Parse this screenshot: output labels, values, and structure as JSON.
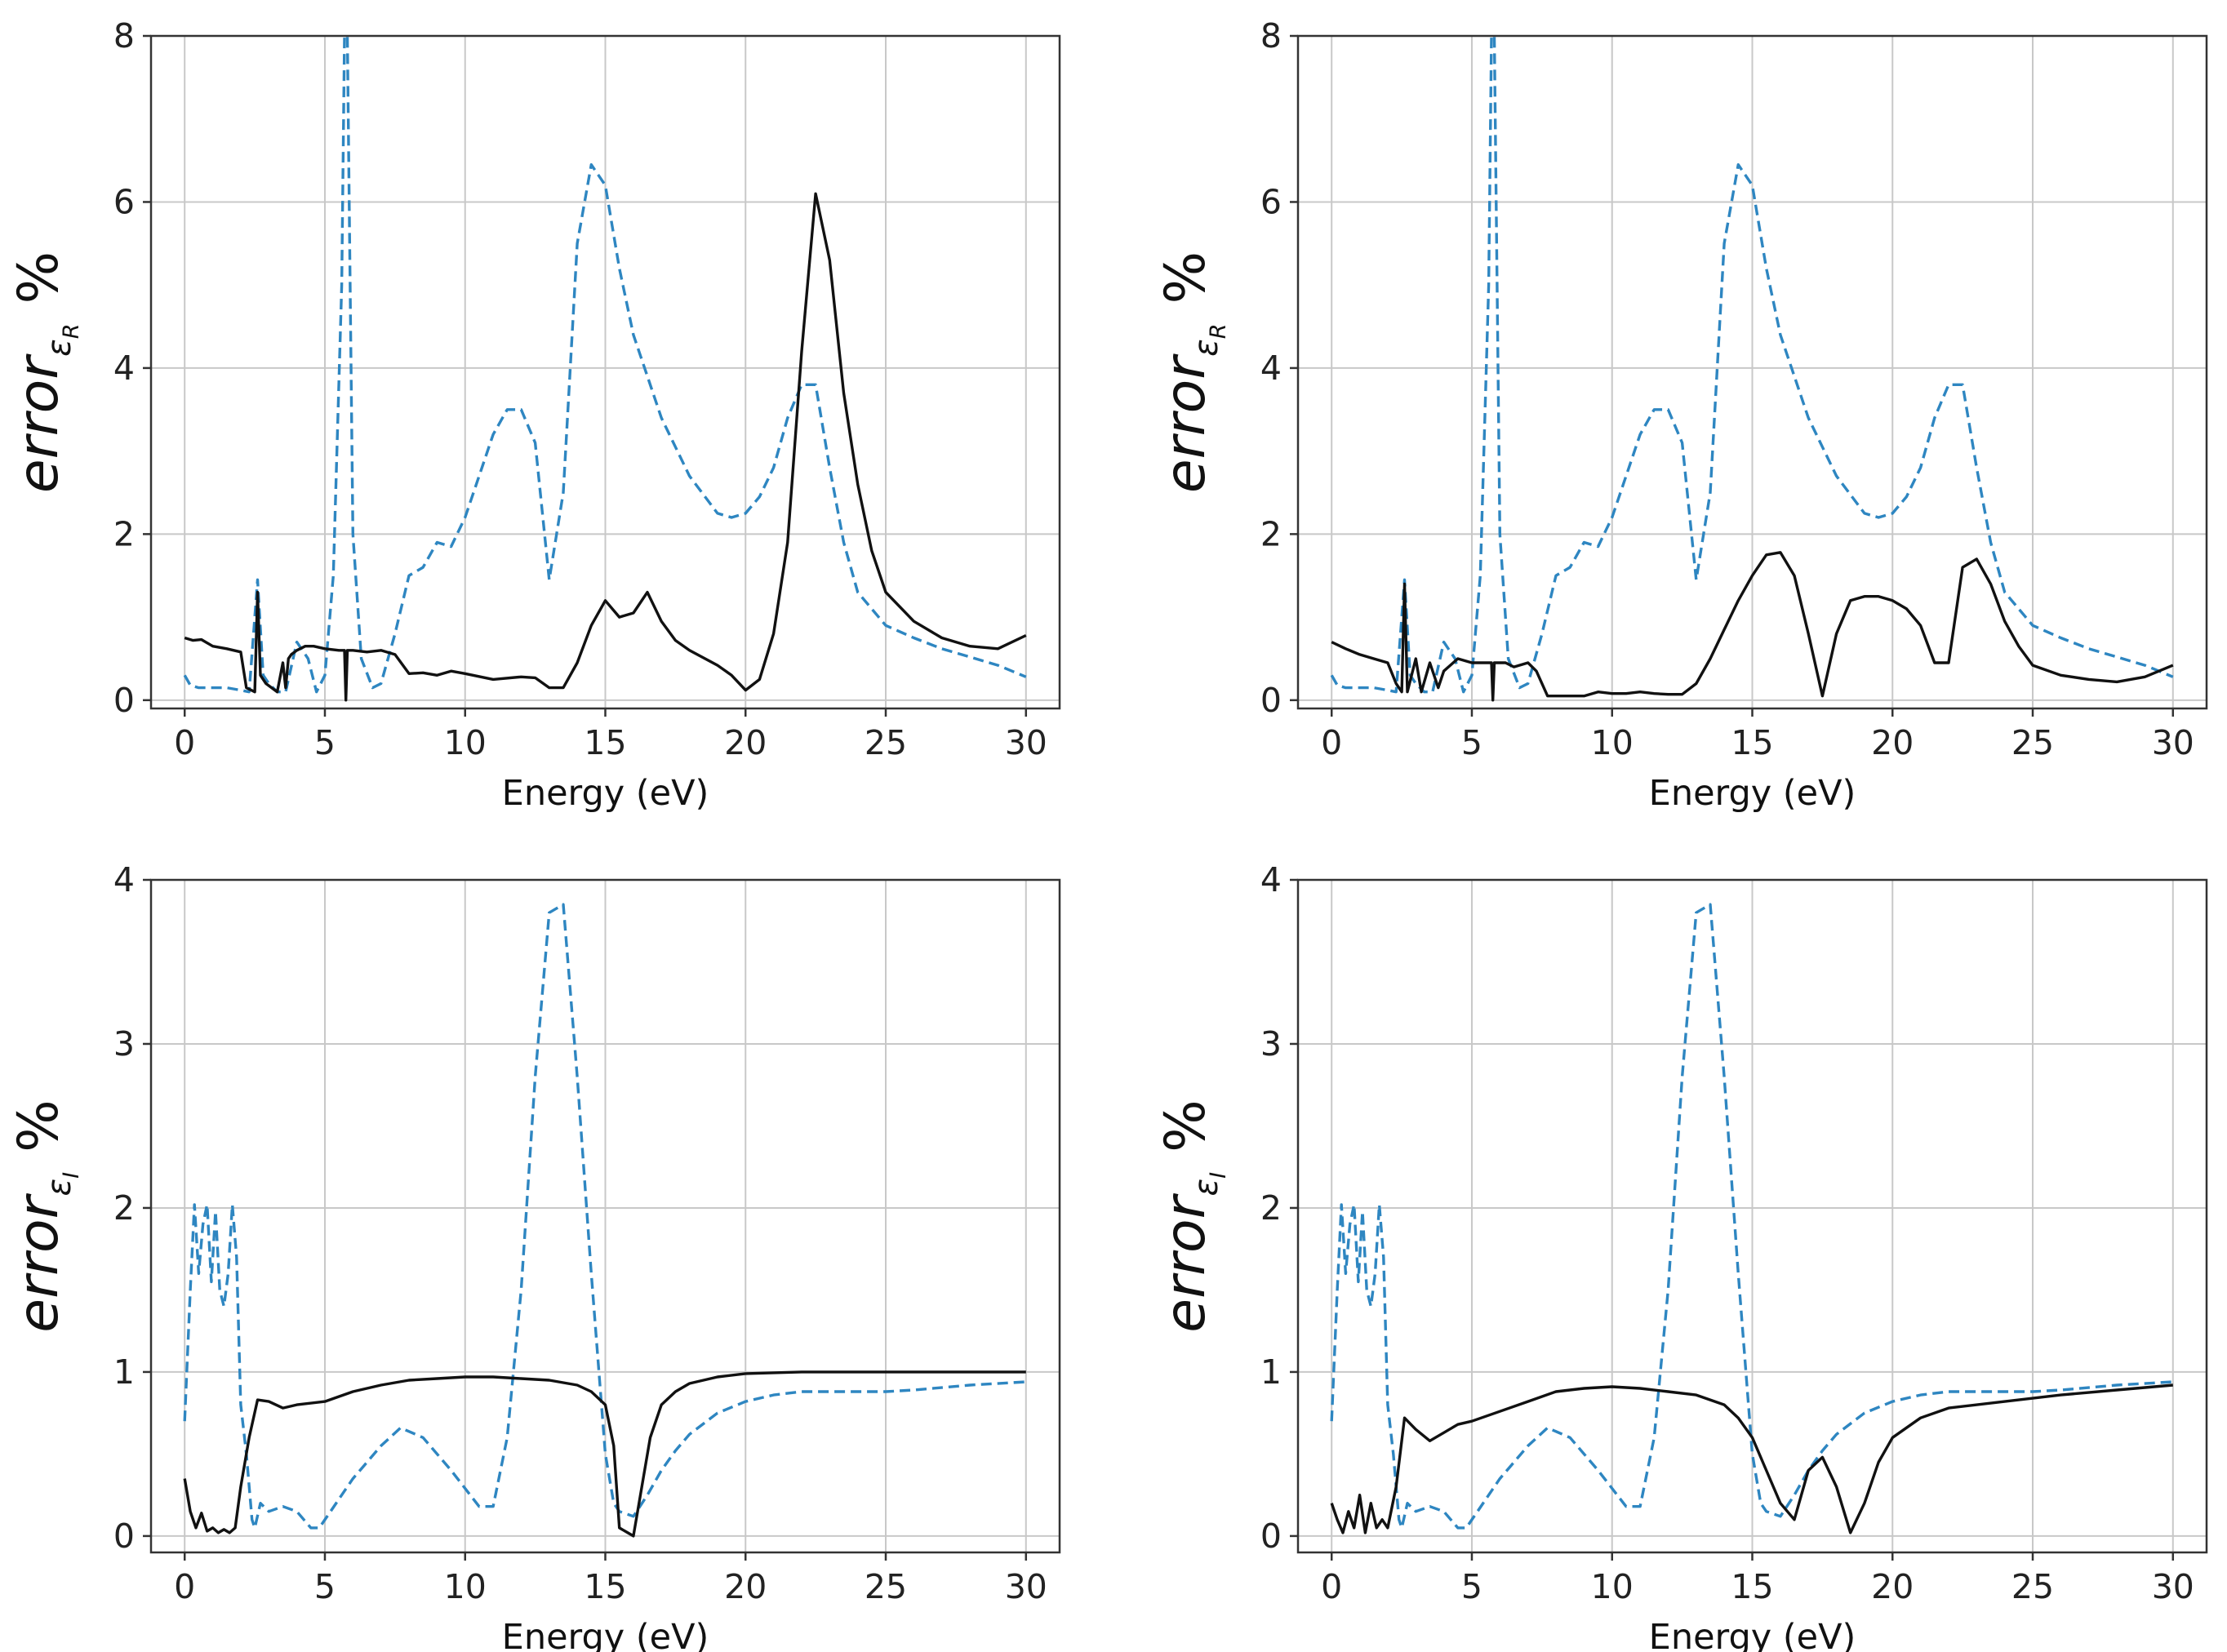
{
  "colors": {
    "truth_line": "#111111",
    "compare_line": "#2e86c1",
    "grid": "#c8c8c8",
    "axes": "#333333"
  },
  "chart_data": [
    {
      "type": "line",
      "panel": "top-left",
      "xlabel": "Energy (eV)",
      "ylabel": {
        "base": "error",
        "sub": "ε",
        "subsub": "R",
        "unit": "%"
      },
      "xlim": [
        -1.2,
        31.2
      ],
      "ylim": [
        -0.1,
        8
      ],
      "xticks": [
        0,
        5,
        10,
        15,
        20,
        25,
        30
      ],
      "yticks": [
        0,
        2,
        4,
        6,
        8
      ],
      "series": [
        {
          "name": "solid",
          "style": "solid",
          "x": [
            0,
            0.3,
            0.6,
            1.0,
            1.5,
            2.0,
            2.2,
            2.5,
            2.6,
            2.7,
            2.9,
            3.1,
            3.3,
            3.5,
            3.6,
            3.7,
            3.8,
            4.0,
            4.3,
            4.6,
            5.0,
            5.5,
            5.7,
            5.75,
            5.8,
            6.0,
            6.5,
            7.0,
            7.5,
            8.0,
            8.5,
            9.0,
            9.5,
            10.0,
            11.0,
            12.0,
            12.5,
            13.0,
            13.5,
            14.0,
            14.5,
            15.0,
            15.5,
            16.0,
            16.5,
            17.0,
            17.5,
            18.0,
            19.0,
            19.5,
            20.0,
            20.5,
            21.0,
            21.5,
            22.0,
            22.5,
            23.0,
            23.5,
            24.0,
            24.5,
            25.0,
            26.0,
            27.0,
            28.0,
            29.0,
            30.0
          ],
          "y": [
            0.75,
            0.72,
            0.73,
            0.65,
            0.62,
            0.58,
            0.15,
            0.1,
            1.3,
            0.3,
            0.2,
            0.15,
            0.1,
            0.45,
            0.15,
            0.5,
            0.55,
            0.6,
            0.65,
            0.65,
            0.62,
            0.6,
            0.6,
            0.0,
            0.6,
            0.6,
            0.58,
            0.6,
            0.55,
            0.32,
            0.33,
            0.3,
            0.35,
            0.32,
            0.25,
            0.28,
            0.27,
            0.15,
            0.15,
            0.45,
            0.9,
            1.2,
            1.0,
            1.05,
            1.3,
            0.95,
            0.72,
            0.6,
            0.42,
            0.3,
            0.12,
            0.25,
            0.8,
            1.9,
            4.2,
            6.1,
            5.3,
            3.7,
            2.6,
            1.8,
            1.3,
            0.95,
            0.75,
            0.65,
            0.62,
            0.78
          ]
        },
        {
          "name": "dashed",
          "style": "dashed",
          "x": [
            0,
            0.2,
            0.5,
            1.0,
            1.5,
            2.0,
            2.3,
            2.5,
            2.6,
            2.8,
            3.0,
            3.3,
            3.6,
            4.0,
            4.4,
            4.7,
            5.0,
            5.3,
            5.6,
            5.7,
            5.8,
            6.0,
            6.3,
            6.7,
            7.0,
            7.5,
            8.0,
            8.5,
            9.0,
            9.5,
            10.0,
            10.5,
            11.0,
            11.5,
            12.0,
            12.5,
            13.0,
            13.5,
            14.0,
            14.5,
            15.0,
            15.5,
            16.0,
            17.0,
            18.0,
            19.0,
            19.5,
            20.0,
            20.5,
            21.0,
            21.5,
            22.0,
            22.5,
            23.0,
            23.5,
            24.0,
            25.0,
            26.0,
            27.0,
            28.0,
            29.0,
            30.0
          ],
          "y": [
            0.3,
            0.18,
            0.15,
            0.15,
            0.15,
            0.12,
            0.1,
            1.0,
            1.45,
            0.3,
            0.2,
            0.1,
            0.1,
            0.7,
            0.5,
            0.1,
            0.3,
            1.5,
            5.0,
            8.0,
            8.0,
            2.0,
            0.5,
            0.15,
            0.2,
            0.8,
            1.5,
            1.6,
            1.9,
            1.85,
            2.2,
            2.7,
            3.2,
            3.5,
            3.5,
            3.1,
            1.45,
            2.5,
            5.5,
            6.45,
            6.2,
            5.2,
            4.4,
            3.4,
            2.7,
            2.25,
            2.2,
            2.25,
            2.45,
            2.8,
            3.4,
            3.8,
            3.8,
            2.8,
            1.9,
            1.3,
            0.9,
            0.75,
            0.62,
            0.52,
            0.42,
            0.28
          ]
        }
      ]
    },
    {
      "type": "line",
      "panel": "top-right",
      "xlabel": "Energy (eV)",
      "ylabel": {
        "base": "error",
        "sub": "ε",
        "subsub": "R",
        "unit": "%"
      },
      "xlim": [
        -1.2,
        31.2
      ],
      "ylim": [
        -0.1,
        8
      ],
      "xticks": [
        0,
        5,
        10,
        15,
        20,
        25,
        30
      ],
      "yticks": [
        0,
        2,
        4,
        6,
        8
      ],
      "series": [
        {
          "name": "solid",
          "style": "solid",
          "x": [
            0,
            0.5,
            1.0,
            1.5,
            2.0,
            2.3,
            2.5,
            2.6,
            2.7,
            3.0,
            3.2,
            3.5,
            3.8,
            4.0,
            4.5,
            5.0,
            5.5,
            5.7,
            5.75,
            5.8,
            6.2,
            6.5,
            7.0,
            7.3,
            7.7,
            8.0,
            8.5,
            9.0,
            9.5,
            10.0,
            10.5,
            11.0,
            11.5,
            12.0,
            12.5,
            13.0,
            13.5,
            14.0,
            14.5,
            15.0,
            15.5,
            16.0,
            16.5,
            17.0,
            17.5,
            18.0,
            18.5,
            19.0,
            19.5,
            20.0,
            20.5,
            21.0,
            21.5,
            22.0,
            22.5,
            23.0,
            23.5,
            24.0,
            24.5,
            25.0,
            26.0,
            27.0,
            28.0,
            29.0,
            30.0
          ],
          "y": [
            0.7,
            0.62,
            0.55,
            0.5,
            0.45,
            0.2,
            0.1,
            1.4,
            0.1,
            0.5,
            0.1,
            0.45,
            0.15,
            0.35,
            0.5,
            0.45,
            0.45,
            0.45,
            0.0,
            0.45,
            0.45,
            0.4,
            0.45,
            0.35,
            0.05,
            0.05,
            0.05,
            0.05,
            0.1,
            0.08,
            0.08,
            0.1,
            0.08,
            0.07,
            0.07,
            0.2,
            0.5,
            0.85,
            1.2,
            1.5,
            1.75,
            1.78,
            1.5,
            0.8,
            0.05,
            0.8,
            1.2,
            1.25,
            1.25,
            1.2,
            1.1,
            0.9,
            0.45,
            0.45,
            1.6,
            1.7,
            1.4,
            0.95,
            0.65,
            0.42,
            0.3,
            0.25,
            0.22,
            0.28,
            0.42
          ]
        },
        {
          "name": "dashed",
          "style": "dashed",
          "x": [
            0,
            0.2,
            0.5,
            1.0,
            1.5,
            2.0,
            2.3,
            2.5,
            2.6,
            2.8,
            3.0,
            3.3,
            3.6,
            4.0,
            4.4,
            4.7,
            5.0,
            5.3,
            5.6,
            5.7,
            5.8,
            6.0,
            6.3,
            6.7,
            7.0,
            7.5,
            8.0,
            8.5,
            9.0,
            9.5,
            10.0,
            10.5,
            11.0,
            11.5,
            12.0,
            12.5,
            13.0,
            13.5,
            14.0,
            14.5,
            15.0,
            15.5,
            16.0,
            17.0,
            18.0,
            19.0,
            19.5,
            20.0,
            20.5,
            21.0,
            21.5,
            22.0,
            22.5,
            23.0,
            23.5,
            24.0,
            25.0,
            26.0,
            27.0,
            28.0,
            29.0,
            30.0
          ],
          "y": [
            0.3,
            0.18,
            0.15,
            0.15,
            0.15,
            0.12,
            0.1,
            1.0,
            1.45,
            0.3,
            0.2,
            0.1,
            0.1,
            0.7,
            0.5,
            0.1,
            0.3,
            1.5,
            5.0,
            8.0,
            8.0,
            2.0,
            0.5,
            0.15,
            0.2,
            0.8,
            1.5,
            1.6,
            1.9,
            1.85,
            2.2,
            2.7,
            3.2,
            3.5,
            3.5,
            3.1,
            1.45,
            2.5,
            5.5,
            6.45,
            6.2,
            5.2,
            4.4,
            3.4,
            2.7,
            2.25,
            2.2,
            2.25,
            2.45,
            2.8,
            3.4,
            3.8,
            3.8,
            2.8,
            1.9,
            1.3,
            0.9,
            0.75,
            0.62,
            0.52,
            0.42,
            0.28
          ]
        }
      ]
    },
    {
      "type": "line",
      "panel": "bottom-left",
      "xlabel": "Energy (eV)",
      "ylabel": {
        "base": "error",
        "sub": "ε",
        "subsub": "I",
        "unit": "%"
      },
      "xlim": [
        -1.2,
        31.2
      ],
      "ylim": [
        -0.1,
        4
      ],
      "xticks": [
        0,
        5,
        10,
        15,
        20,
        25,
        30
      ],
      "yticks": [
        0,
        1,
        2,
        3,
        4
      ],
      "series": [
        {
          "name": "solid",
          "style": "solid",
          "x": [
            0,
            0.2,
            0.4,
            0.6,
            0.8,
            1.0,
            1.2,
            1.4,
            1.6,
            1.8,
            2.0,
            2.3,
            2.6,
            3.0,
            3.5,
            4.0,
            5.0,
            6.0,
            7.0,
            8.0,
            9.0,
            10.0,
            11.0,
            12.0,
            13.0,
            14.0,
            14.5,
            15.0,
            15.3,
            15.5,
            15.8,
            16.0,
            16.3,
            16.6,
            17.0,
            17.5,
            18.0,
            19.0,
            20.0,
            22.0,
            25.0,
            28.0,
            30.0
          ],
          "y": [
            0.35,
            0.15,
            0.05,
            0.14,
            0.03,
            0.05,
            0.02,
            0.04,
            0.02,
            0.05,
            0.3,
            0.6,
            0.83,
            0.82,
            0.78,
            0.8,
            0.82,
            0.88,
            0.92,
            0.95,
            0.96,
            0.97,
            0.97,
            0.96,
            0.95,
            0.92,
            0.88,
            0.8,
            0.55,
            0.05,
            0.02,
            0.0,
            0.3,
            0.6,
            0.8,
            0.88,
            0.93,
            0.97,
            0.99,
            1.0,
            1.0,
            1.0,
            1.0
          ]
        },
        {
          "name": "dashed",
          "style": "dashed",
          "x": [
            0,
            0.2,
            0.35,
            0.5,
            0.65,
            0.8,
            0.95,
            1.1,
            1.25,
            1.4,
            1.55,
            1.7,
            1.85,
            2.0,
            2.2,
            2.4,
            2.5,
            2.7,
            3.0,
            3.5,
            4.0,
            4.5,
            4.8,
            5.2,
            6.0,
            7.0,
            7.7,
            8.5,
            9.5,
            10.5,
            11.0,
            11.5,
            12.0,
            12.5,
            13.0,
            13.5,
            14.0,
            14.5,
            15.0,
            15.3,
            15.5,
            16.0,
            16.5,
            17.0,
            17.5,
            18.0,
            19.0,
            20.0,
            21.0,
            22.0,
            23.0,
            24.0,
            25.0,
            26.0,
            28.0,
            30.0
          ],
          "y": [
            0.7,
            1.5,
            2.02,
            1.6,
            1.9,
            2.02,
            1.55,
            1.98,
            1.5,
            1.4,
            1.6,
            2.02,
            1.7,
            0.8,
            0.5,
            0.1,
            0.05,
            0.2,
            0.15,
            0.18,
            0.15,
            0.05,
            0.05,
            0.15,
            0.35,
            0.55,
            0.66,
            0.6,
            0.4,
            0.18,
            0.18,
            0.6,
            1.5,
            2.8,
            3.8,
            3.85,
            2.8,
            1.6,
            0.5,
            0.2,
            0.15,
            0.12,
            0.25,
            0.4,
            0.52,
            0.62,
            0.75,
            0.82,
            0.86,
            0.88,
            0.88,
            0.88,
            0.88,
            0.89,
            0.92,
            0.94
          ]
        }
      ]
    },
    {
      "type": "line",
      "panel": "bottom-right",
      "xlabel": "Energy (eV)",
      "ylabel": {
        "base": "error",
        "sub": "ε",
        "subsub": "I",
        "unit": "%"
      },
      "xlim": [
        -1.2,
        31.2
      ],
      "ylim": [
        -0.1,
        4
      ],
      "xticks": [
        0,
        5,
        10,
        15,
        20,
        25,
        30
      ],
      "yticks": [
        0,
        1,
        2,
        3,
        4
      ],
      "series": [
        {
          "name": "solid",
          "style": "solid",
          "x": [
            0,
            0.2,
            0.4,
            0.6,
            0.8,
            1.0,
            1.2,
            1.4,
            1.6,
            1.8,
            2.0,
            2.3,
            2.6,
            3.0,
            3.5,
            4.0,
            4.5,
            5.0,
            6.0,
            7.0,
            8.0,
            9.0,
            10.0,
            11.0,
            12.0,
            13.0,
            14.0,
            14.5,
            15.0,
            15.5,
            16.0,
            16.5,
            17.0,
            17.5,
            18.0,
            18.5,
            19.0,
            19.5,
            20.0,
            21.0,
            22.0,
            24.0,
            26.0,
            28.0,
            30.0
          ],
          "y": [
            0.2,
            0.1,
            0.02,
            0.15,
            0.05,
            0.25,
            0.02,
            0.2,
            0.05,
            0.1,
            0.05,
            0.3,
            0.72,
            0.65,
            0.58,
            0.63,
            0.68,
            0.7,
            0.76,
            0.82,
            0.88,
            0.9,
            0.91,
            0.9,
            0.88,
            0.86,
            0.8,
            0.72,
            0.6,
            0.4,
            0.2,
            0.1,
            0.4,
            0.48,
            0.3,
            0.02,
            0.2,
            0.45,
            0.6,
            0.72,
            0.78,
            0.82,
            0.86,
            0.89,
            0.92
          ]
        },
        {
          "name": "dashed",
          "style": "dashed",
          "x": [
            0,
            0.2,
            0.35,
            0.5,
            0.65,
            0.8,
            0.95,
            1.1,
            1.25,
            1.4,
            1.55,
            1.7,
            1.85,
            2.0,
            2.2,
            2.4,
            2.5,
            2.7,
            3.0,
            3.5,
            4.0,
            4.5,
            4.8,
            5.2,
            6.0,
            7.0,
            7.7,
            8.5,
            9.5,
            10.5,
            11.0,
            11.5,
            12.0,
            12.5,
            13.0,
            13.5,
            14.0,
            14.5,
            15.0,
            15.3,
            15.5,
            16.0,
            16.5,
            17.0,
            17.5,
            18.0,
            19.0,
            20.0,
            21.0,
            22.0,
            23.0,
            24.0,
            25.0,
            26.0,
            28.0,
            30.0
          ],
          "y": [
            0.7,
            1.5,
            2.02,
            1.6,
            1.9,
            2.02,
            1.55,
            1.98,
            1.5,
            1.4,
            1.6,
            2.02,
            1.7,
            0.8,
            0.5,
            0.1,
            0.05,
            0.2,
            0.15,
            0.18,
            0.15,
            0.05,
            0.05,
            0.15,
            0.35,
            0.55,
            0.66,
            0.6,
            0.4,
            0.18,
            0.18,
            0.6,
            1.5,
            2.8,
            3.8,
            3.85,
            2.8,
            1.6,
            0.5,
            0.2,
            0.15,
            0.12,
            0.25,
            0.4,
            0.52,
            0.62,
            0.75,
            0.82,
            0.86,
            0.88,
            0.88,
            0.88,
            0.88,
            0.89,
            0.92,
            0.94
          ]
        }
      ]
    }
  ]
}
